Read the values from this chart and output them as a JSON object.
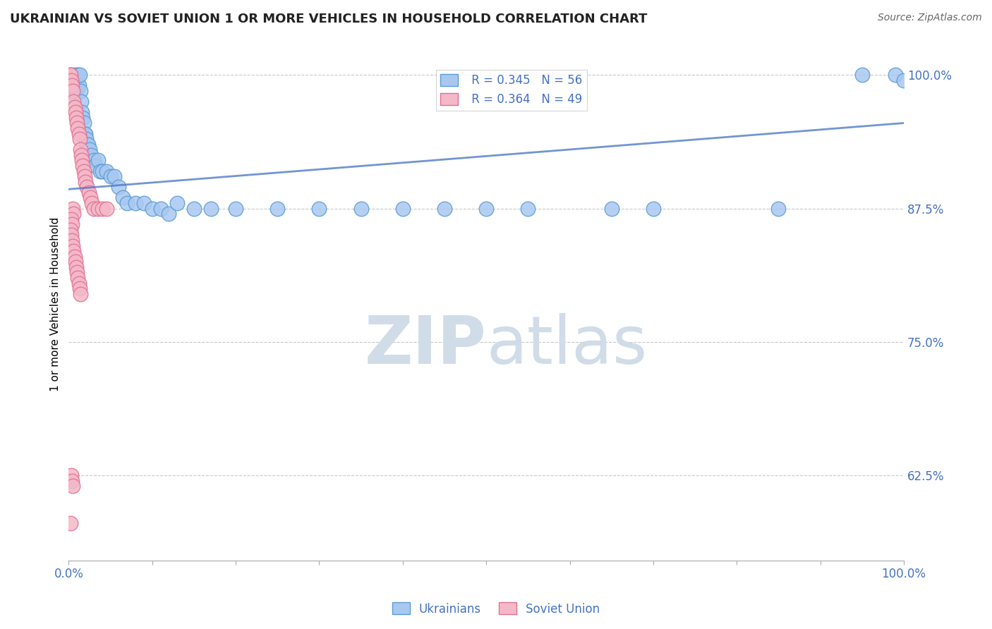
{
  "title": "UKRAINIAN VS SOVIET UNION 1 OR MORE VEHICLES IN HOUSEHOLD CORRELATION CHART",
  "source": "Source: ZipAtlas.com",
  "ylabel": "1 or more Vehicles in Household",
  "xlabel": "",
  "watermark": "ZIPatlas",
  "legend_blue_label": "Ukrainians",
  "legend_pink_label": "Soviet Union",
  "R_blue": 0.345,
  "N_blue": 56,
  "R_pink": 0.364,
  "N_pink": 49,
  "xlim": [
    0.0,
    1.0
  ],
  "ylim": [
    0.545,
    1.025
  ],
  "yticks": [
    0.625,
    0.75,
    0.875,
    1.0
  ],
  "ytick_labels": [
    "62.5%",
    "75.0%",
    "87.5%",
    "100.0%"
  ],
  "blue_color": "#a8c8f0",
  "blue_edge_color": "#5b9bd5",
  "pink_color": "#f4b8c8",
  "pink_edge_color": "#e07090",
  "trendline_color": "#4472c4",
  "trendline_start_x": 0.0,
  "trendline_start_y": 0.893,
  "trendline_end_x": 1.0,
  "trendline_end_y": 0.955,
  "background_color": "#ffffff",
  "grid_color": "#c8c8c8",
  "axis_color": "#aaaaaa",
  "tick_label_color": "#4472c4",
  "title_color": "#222222",
  "watermark_color": "#d0dce8",
  "blue_x": [
    0.003,
    0.004,
    0.005,
    0.006,
    0.007,
    0.008,
    0.009,
    0.01,
    0.011,
    0.012,
    0.013,
    0.014,
    0.015,
    0.016,
    0.017,
    0.018,
    0.019,
    0.02,
    0.021,
    0.022,
    0.023,
    0.025,
    0.027,
    0.03,
    0.032,
    0.035,
    0.038,
    0.04,
    0.045,
    0.05,
    0.055,
    0.06,
    0.065,
    0.07,
    0.08,
    0.09,
    0.1,
    0.11,
    0.12,
    0.13,
    0.15,
    0.17,
    0.2,
    0.25,
    0.3,
    0.35,
    0.4,
    0.45,
    0.5,
    0.55,
    0.65,
    0.7,
    0.85,
    0.95,
    0.99,
    1.0
  ],
  "blue_y": [
    0.99,
    1.0,
    0.99,
    0.98,
    0.99,
    1.0,
    0.985,
    0.99,
    1.0,
    0.99,
    1.0,
    0.985,
    0.975,
    0.965,
    0.96,
    0.955,
    0.945,
    0.945,
    0.94,
    0.935,
    0.935,
    0.93,
    0.925,
    0.92,
    0.915,
    0.92,
    0.91,
    0.91,
    0.91,
    0.905,
    0.905,
    0.895,
    0.885,
    0.88,
    0.88,
    0.88,
    0.875,
    0.875,
    0.87,
    0.88,
    0.875,
    0.875,
    0.875,
    0.875,
    0.875,
    0.875,
    0.875,
    0.875,
    0.875,
    0.875,
    0.875,
    0.875,
    0.875,
    1.0,
    1.0,
    0.995
  ],
  "pink_x": [
    0.001,
    0.002,
    0.003,
    0.004,
    0.005,
    0.006,
    0.007,
    0.008,
    0.009,
    0.01,
    0.011,
    0.012,
    0.013,
    0.014,
    0.015,
    0.016,
    0.017,
    0.018,
    0.019,
    0.02,
    0.022,
    0.024,
    0.026,
    0.028,
    0.03,
    0.035,
    0.04,
    0.045,
    0.005,
    0.006,
    0.003,
    0.004,
    0.002,
    0.003,
    0.004,
    0.005,
    0.006,
    0.007,
    0.008,
    0.009,
    0.01,
    0.011,
    0.012,
    0.013,
    0.014,
    0.003,
    0.004,
    0.005,
    0.002
  ],
  "pink_y": [
    1.0,
    1.0,
    0.995,
    0.99,
    0.985,
    0.975,
    0.97,
    0.965,
    0.96,
    0.955,
    0.95,
    0.945,
    0.94,
    0.93,
    0.925,
    0.92,
    0.915,
    0.91,
    0.905,
    0.9,
    0.895,
    0.89,
    0.885,
    0.88,
    0.875,
    0.875,
    0.875,
    0.875,
    0.875,
    0.87,
    0.865,
    0.86,
    0.855,
    0.85,
    0.845,
    0.84,
    0.835,
    0.83,
    0.825,
    0.82,
    0.815,
    0.81,
    0.805,
    0.8,
    0.795,
    0.625,
    0.62,
    0.615,
    0.58
  ]
}
